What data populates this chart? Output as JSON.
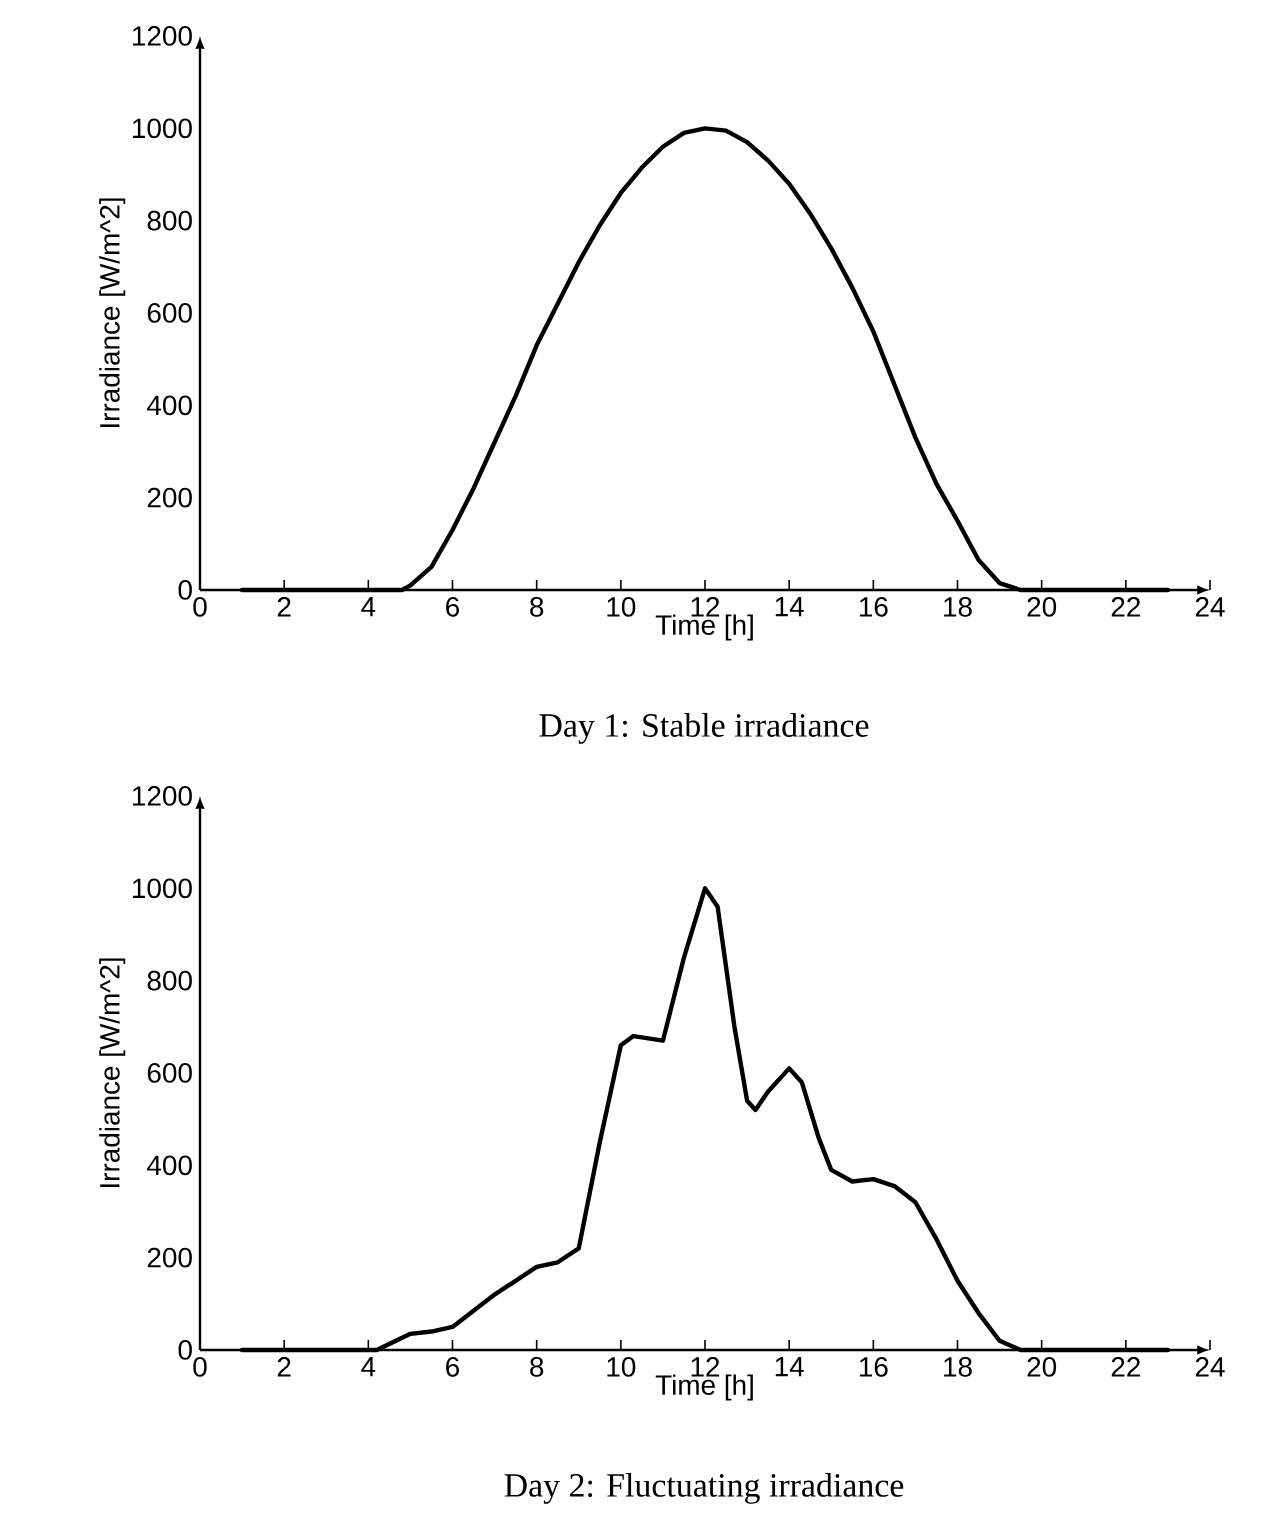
{
  "chart_data": [
    {
      "type": "line",
      "title": "Day 1: Stable irradiance",
      "xlabel": "Time [h]",
      "ylabel": "Irradiance [W/m^2]",
      "color": "#000000",
      "x": [
        1,
        2,
        3,
        4,
        4.8,
        5,
        5.5,
        6,
        6.5,
        7,
        7.5,
        8,
        8.5,
        9,
        9.5,
        10,
        10.5,
        11,
        11.5,
        12,
        12.5,
        13,
        13.5,
        14,
        14.5,
        15,
        15.5,
        16,
        16.5,
        17,
        17.5,
        18,
        18.5,
        19,
        19.5,
        20,
        21,
        22,
        23
      ],
      "values": [
        0,
        0,
        0,
        0,
        0,
        10,
        50,
        130,
        220,
        320,
        420,
        530,
        620,
        710,
        790,
        860,
        915,
        960,
        990,
        1000,
        995,
        970,
        930,
        880,
        815,
        740,
        655,
        560,
        445,
        330,
        230,
        150,
        65,
        15,
        0,
        0,
        0,
        0,
        0
      ],
      "xlim": [
        0,
        24
      ],
      "ylim": [
        0,
        1200
      ],
      "xticks": [
        0,
        2,
        4,
        6,
        8,
        10,
        12,
        14,
        16,
        18,
        20,
        22,
        24
      ],
      "yticks": [
        0,
        200,
        400,
        600,
        800,
        1000,
        1200
      ]
    },
    {
      "type": "line",
      "title": "Day 2: Fluctuating irradiance",
      "xlabel": "Time [h]",
      "ylabel": "Irradiance [W/m^2]",
      "color": "#000000",
      "x": [
        1,
        2,
        3,
        4,
        4.2,
        5,
        5.5,
        6,
        7,
        8,
        8.5,
        9,
        9.5,
        10,
        10.3,
        11,
        11.5,
        12,
        12.3,
        12.7,
        13,
        13.2,
        13.5,
        14,
        14.3,
        14.7,
        15,
        15.5,
        16,
        16.5,
        17,
        17.5,
        18,
        18.5,
        19,
        19.5,
        20,
        21,
        22,
        23
      ],
      "values": [
        0,
        0,
        0,
        0,
        0,
        35,
        40,
        50,
        120,
        180,
        190,
        220,
        450,
        660,
        680,
        670,
        850,
        1000,
        960,
        700,
        540,
        520,
        560,
        610,
        580,
        460,
        390,
        365,
        370,
        355,
        320,
        240,
        150,
        80,
        20,
        0,
        0,
        0,
        0,
        0
      ],
      "xlim": [
        0,
        24
      ],
      "ylim": [
        0,
        1200
      ],
      "xticks": [
        0,
        2,
        4,
        6,
        8,
        10,
        12,
        14,
        16,
        18,
        20,
        22,
        24
      ],
      "yticks": [
        0,
        200,
        400,
        600,
        800,
        1000,
        1200
      ]
    }
  ]
}
